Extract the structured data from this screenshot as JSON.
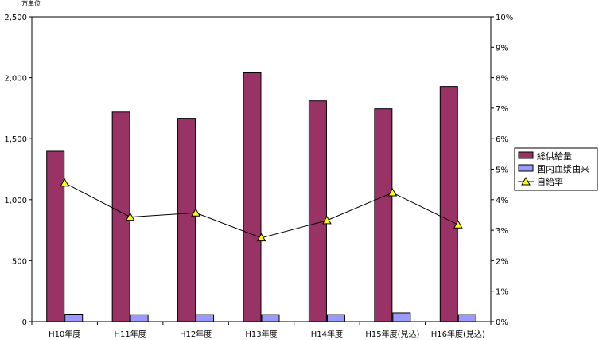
{
  "chart_data": {
    "type": "bar",
    "y_unit_label": "万単位",
    "categories": [
      "H10年度",
      "H11年度",
      "H12年度",
      "H13年度",
      "H14年度",
      "H15年度(見込)",
      "H16年度(見込)"
    ],
    "series": [
      {
        "name": "総供給量",
        "type": "bar",
        "axis": "left",
        "color": "#993366",
        "values": [
          1397,
          1718,
          1667,
          2040,
          1810,
          1745,
          1928
        ]
      },
      {
        "name": "国内血漿由来",
        "type": "bar",
        "axis": "left",
        "color": "#9999ff",
        "values": [
          62,
          57,
          58,
          58,
          58,
          72,
          58
        ]
      },
      {
        "name": "自給率",
        "type": "line",
        "axis": "right",
        "color": "#000000",
        "marker": "triangle",
        "marker_color": "#ffff00",
        "values": [
          0.0455,
          0.0343,
          0.0357,
          0.0275,
          0.0332,
          0.0423,
          0.0318
        ]
      }
    ],
    "y_left": {
      "min": 0,
      "max": 2500,
      "ticks": [
        0,
        500,
        1000,
        1500,
        2000,
        2500
      ],
      "tick_labels": [
        "0",
        "500",
        "1,000",
        "1,500",
        "2,000",
        "2,500"
      ]
    },
    "y_right": {
      "min": 0,
      "max": 0.1,
      "ticks": [
        0,
        0.01,
        0.02,
        0.03,
        0.04,
        0.05,
        0.06,
        0.07,
        0.08,
        0.09,
        0.1
      ],
      "tick_labels": [
        "0%",
        "1%",
        "2%",
        "3%",
        "4%",
        "5%",
        "6%",
        "7%",
        "8%",
        "9%",
        "10%"
      ]
    },
    "grid": false,
    "legend_position": "right"
  }
}
